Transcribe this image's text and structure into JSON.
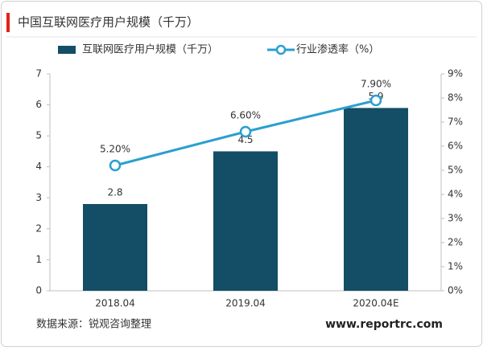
{
  "chart_data": {
    "type": "bar",
    "title": "中国互联网医疗用户规模（千万）",
    "categories": [
      "2018.04",
      "2019.04",
      "2020.04E"
    ],
    "series": [
      {
        "name": "互联网医疗用户规模（千万）",
        "type": "bar",
        "color": "#134e66",
        "values": [
          2.8,
          4.5,
          5.9
        ]
      },
      {
        "name": "行业渗透率（%）",
        "type": "line",
        "axis": "y2",
        "color": "#2a9fd0",
        "values": [
          5.2,
          6.6,
          7.9
        ],
        "value_labels": [
          "5.20%",
          "6.60%",
          "7.90%"
        ]
      }
    ],
    "ylim": [
      0,
      7
    ],
    "yticks": [
      0,
      1,
      2,
      3,
      4,
      5,
      6,
      7
    ],
    "y2lim": [
      0,
      9
    ],
    "y2ticks": [
      {
        "value": 0,
        "label": "0%"
      },
      {
        "value": 1,
        "label": "1%"
      },
      {
        "value": 2,
        "label": "2%"
      },
      {
        "value": 3,
        "label": "3%"
      },
      {
        "value": 4,
        "label": "4%"
      },
      {
        "value": 5,
        "label": "5%"
      },
      {
        "value": 6,
        "label": "6%"
      },
      {
        "value": 7,
        "label": "7%"
      },
      {
        "value": 8,
        "label": "8%"
      },
      {
        "value": 9,
        "label": "9%"
      }
    ],
    "grid": false,
    "legend": "top",
    "source": "数据来源：锐观咨询整理",
    "website": "www.reportrc.com"
  }
}
